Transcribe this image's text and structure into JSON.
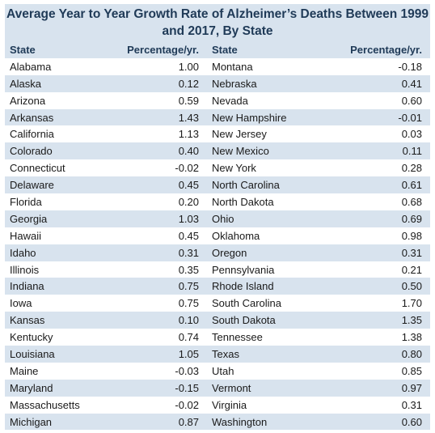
{
  "chart_data": {
    "type": "table",
    "title": "Average Year to Year Growth Rate of Alzheimer’s Deaths Between 1999 and 2017, By State",
    "columns": [
      "State",
      "Percentage/yr.",
      "State",
      "Percentage/yr."
    ],
    "rows": [
      [
        {
          "state": "Alabama",
          "value": "1.00"
        },
        {
          "state": "Montana",
          "value": "-0.18"
        }
      ],
      [
        {
          "state": "Alaska",
          "value": "0.12"
        },
        {
          "state": "Nebraska",
          "value": "0.41"
        }
      ],
      [
        {
          "state": "Arizona",
          "value": "0.59"
        },
        {
          "state": "Nevada",
          "value": "0.60"
        }
      ],
      [
        {
          "state": "Arkansas",
          "value": "1.43"
        },
        {
          "state": "New Hampshire",
          "value": "-0.01"
        }
      ],
      [
        {
          "state": "California",
          "value": "1.13"
        },
        {
          "state": "New Jersey",
          "value": "0.03"
        }
      ],
      [
        {
          "state": "Colorado",
          "value": "0.40"
        },
        {
          "state": "New Mexico",
          "value": "0.11"
        }
      ],
      [
        {
          "state": "Connecticut",
          "value": "-0.02"
        },
        {
          "state": "New York",
          "value": "0.28"
        }
      ],
      [
        {
          "state": "Delaware",
          "value": "0.45"
        },
        {
          "state": "North Carolina",
          "value": "0.61"
        }
      ],
      [
        {
          "state": "Florida",
          "value": "0.20"
        },
        {
          "state": "North Dakota",
          "value": "0.68"
        }
      ],
      [
        {
          "state": "Georgia",
          "value": "1.03"
        },
        {
          "state": "Ohio",
          "value": "0.69"
        }
      ],
      [
        {
          "state": "Hawaii",
          "value": "0.45"
        },
        {
          "state": "Oklahoma",
          "value": "0.98"
        }
      ],
      [
        {
          "state": "Idaho",
          "value": "0.31"
        },
        {
          "state": "Oregon",
          "value": "0.31"
        }
      ],
      [
        {
          "state": "Illinois",
          "value": "0.35"
        },
        {
          "state": "Pennsylvania",
          "value": "0.21"
        }
      ],
      [
        {
          "state": "Indiana",
          "value": "0.75"
        },
        {
          "state": "Rhode Island",
          "value": "0.50"
        }
      ],
      [
        {
          "state": "Iowa",
          "value": "0.75"
        },
        {
          "state": "South Carolina",
          "value": "1.70"
        }
      ],
      [
        {
          "state": "Kansas",
          "value": "0.10"
        },
        {
          "state": "South Dakota",
          "value": "1.35"
        }
      ],
      [
        {
          "state": "Kentucky",
          "value": "0.74"
        },
        {
          "state": "Tennessee",
          "value": "1.38"
        }
      ],
      [
        {
          "state": "Louisiana",
          "value": "1.05"
        },
        {
          "state": "Texas",
          "value": "0.80"
        }
      ],
      [
        {
          "state": "Maine",
          "value": "-0.03"
        },
        {
          "state": "Utah",
          "value": "0.85"
        }
      ],
      [
        {
          "state": "Maryland",
          "value": "-0.15"
        },
        {
          "state": "Vermont",
          "value": "0.97"
        }
      ],
      [
        {
          "state": "Massachusetts",
          "value": "-0.02"
        },
        {
          "state": "Virginia",
          "value": "0.31"
        }
      ],
      [
        {
          "state": "Michigan",
          "value": "0.87"
        },
        {
          "state": "Washington",
          "value": "0.60"
        }
      ]
    ],
    "colors": {
      "band": "#d8e3ee",
      "header_text": "#1f3a57"
    }
  }
}
